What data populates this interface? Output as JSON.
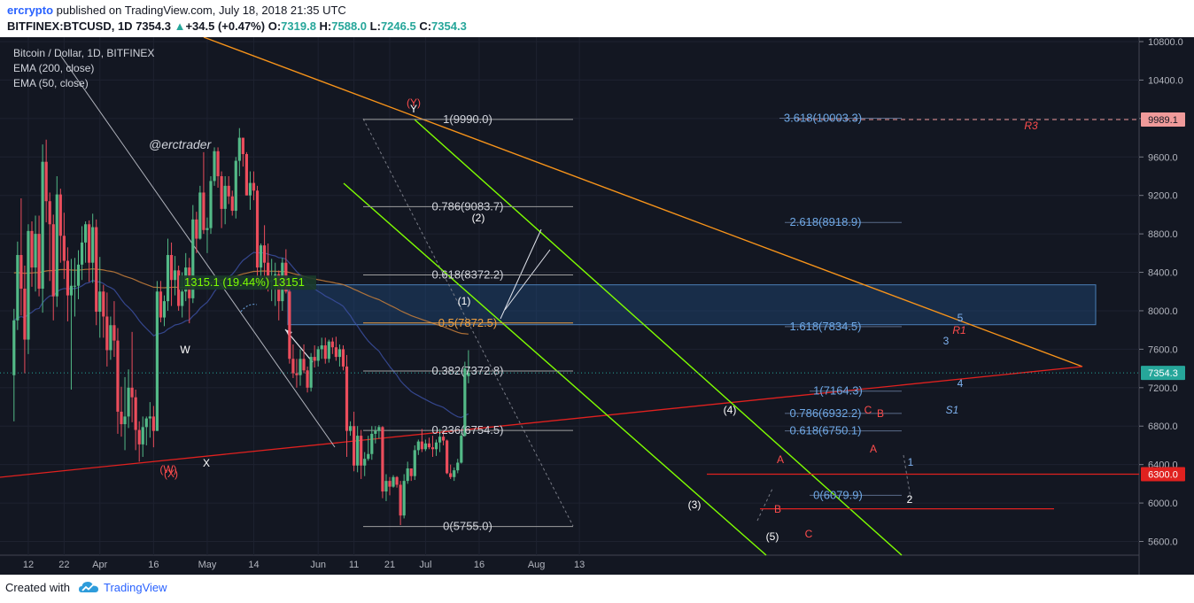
{
  "header": {
    "author": "ercrypto",
    "published_text": "published on TradingView.com, July 18, 2018 21:35 UTC",
    "symbol": "BITFINEX:BTCUSD, 1D",
    "last": "7354.3",
    "change": "+34.5 (+0.47%)",
    "o_label": "O:",
    "o_value": "7319.8",
    "h_label": "H:",
    "h_value": "7588.0",
    "l_label": "L:",
    "l_value": "7246.5",
    "c_label": "C:",
    "c_value": "7354.3"
  },
  "legend": {
    "title": "Bitcoin / Dollar, 1D, BITFINEX",
    "ema200": "EMA (200, close)",
    "ema50": "EMA (50, close)"
  },
  "watermark": "@erctrader",
  "footer": {
    "created": "Created with",
    "brand": "TradingView"
  },
  "colors": {
    "background": "#131722",
    "up": "#26a69a",
    "up_candle": "#53b987",
    "down": "#eb4d5c",
    "ema200": "#c87f3a",
    "ema50": "#3b4fa0",
    "channel": "#7fff00",
    "trendline_orange": "#f7931a",
    "trendline_red": "#e0211f",
    "fib": "#9e9e9e",
    "zone": "#1f4a7a",
    "wave_labels_red": "#ff4d4d",
    "fib_ext": "#6ea8e6"
  },
  "chart_data": {
    "type": "candlestick",
    "title": "Bitcoin / Dollar, 1D, BITFINEX",
    "ylim": [
      5400,
      10900
    ],
    "x_tick_labels": [
      "12",
      "22",
      "Apr",
      "16",
      "May",
      "14",
      "Jun",
      "11",
      "21",
      "Jul",
      "16",
      "Aug",
      "13"
    ],
    "y_tick_labels": [
      "10800.0",
      "10400.0",
      "10000.0",
      "9600.0",
      "9200.0",
      "8800.0",
      "8400.0",
      "8000.0",
      "7600.0",
      "7200.0",
      "6800.0",
      "6400.0",
      "6000.0",
      "5600.0"
    ],
    "price_tags": [
      {
        "label": "9989.1",
        "value": 9989.1,
        "color": "#ef9a9a"
      },
      {
        "label": "7354.3",
        "value": 7354.3,
        "color": "#26a69a"
      },
      {
        "label": "6300.0",
        "value": 6300.0,
        "color": "#e0211f"
      }
    ],
    "fib_retracement": {
      "levels": [
        {
          "label": "1(9990.0)",
          "value": 9990.0
        },
        {
          "label": "0.786(9083.7)",
          "value": 9083.7
        },
        {
          "label": "0.618(8372.2)",
          "value": 8372.2
        },
        {
          "label": "0.5(7872.5)",
          "value": 7872.5
        },
        {
          "label": "0.382(7372.8)",
          "value": 7372.8
        },
        {
          "label": "0.236(6754.5)",
          "value": 6754.5
        },
        {
          "label": "0(5755.0)",
          "value": 5755.0
        }
      ]
    },
    "fib_extension": {
      "levels": [
        {
          "label": "3.618(10003.3)",
          "value": 10003.3
        },
        {
          "label": "2.618(8918.9)",
          "value": 8918.9
        },
        {
          "label": "1.618(7834.5)",
          "value": 7834.5
        },
        {
          "label": "1(7164.3)",
          "value": 7164.3
        },
        {
          "label": "0.786(6932.2)",
          "value": 6932.2
        },
        {
          "label": "0.618(6750.1)",
          "value": 6750.1
        },
        {
          "label": "0(6079.9)",
          "value": 6079.9
        }
      ]
    },
    "measure_label": "1315.1 (19.44%) 13151",
    "wave_labels": [
      {
        "text": "W",
        "color": "white"
      },
      {
        "text": "X",
        "color": "white"
      },
      {
        "text": "(W)",
        "color": "red"
      },
      {
        "text": "(X)",
        "color": "red"
      },
      {
        "text": "(Y)",
        "color": "red"
      },
      {
        "text": "Y",
        "color": "white"
      },
      {
        "text": "(1)",
        "color": "white"
      },
      {
        "text": "(2)",
        "color": "white"
      },
      {
        "text": "(3)",
        "color": "white"
      },
      {
        "text": "(4)",
        "color": "white"
      },
      {
        "text": "(5)",
        "color": "white"
      },
      {
        "text": "A",
        "color": "red"
      },
      {
        "text": "B",
        "color": "red"
      },
      {
        "text": "C",
        "color": "red"
      },
      {
        "text": "A",
        "color": "red"
      },
      {
        "text": "B",
        "color": "red"
      },
      {
        "text": "C",
        "color": "red"
      },
      {
        "text": "1",
        "color": "blue"
      },
      {
        "text": "2",
        "color": "white"
      },
      {
        "text": "3",
        "color": "blue"
      },
      {
        "text": "4",
        "color": "blue"
      },
      {
        "text": "5",
        "color": "blue"
      },
      {
        "text": "R1",
        "color": "red"
      },
      {
        "text": "R3",
        "color": "red"
      },
      {
        "text": "S1",
        "color": "blue"
      }
    ],
    "ohlc": [
      [
        7330,
        8020,
        6850,
        7900
      ],
      [
        7900,
        8720,
        7800,
        8580
      ],
      [
        8580,
        9170,
        7950,
        8230
      ],
      [
        8230,
        8470,
        7350,
        7700
      ],
      [
        7700,
        8900,
        7550,
        8830
      ],
      [
        8830,
        8930,
        8250,
        8450
      ],
      [
        8450,
        8990,
        8200,
        8800
      ],
      [
        8800,
        8990,
        8150,
        8230
      ],
      [
        8230,
        9730,
        7980,
        9550
      ],
      [
        9550,
        9780,
        8920,
        9140
      ],
      [
        9140,
        9230,
        8310,
        8900
      ],
      [
        8900,
        9000,
        7900,
        8150
      ],
      [
        8150,
        9400,
        8040,
        9210
      ],
      [
        9210,
        9270,
        8500,
        8780
      ],
      [
        8780,
        9020,
        8330,
        8520
      ],
      [
        8520,
        8660,
        7890,
        8160
      ],
      [
        8160,
        8540,
        7180,
        8260
      ],
      [
        8260,
        8550,
        7940,
        8260
      ],
      [
        8260,
        8630,
        8120,
        8480
      ],
      [
        8480,
        8880,
        8320,
        8710
      ],
      [
        8710,
        8930,
        8500,
        8900
      ],
      [
        8900,
        8940,
        8300,
        8500
      ],
      [
        8500,
        9010,
        8290,
        8870
      ],
      [
        8870,
        8950,
        7850,
        7990
      ],
      [
        7990,
        8560,
        7720,
        8200
      ],
      [
        8200,
        8270,
        7720,
        7940
      ],
      [
        7940,
        8190,
        7420,
        7590
      ],
      [
        7590,
        7940,
        7490,
        7850
      ],
      [
        7850,
        8100,
        7520,
        7690
      ],
      [
        7690,
        7820,
        6720,
        6950
      ],
      [
        6950,
        7210,
        6690,
        6820
      ],
      [
        6820,
        7310,
        6550,
        6900
      ],
      [
        6900,
        7390,
        6780,
        7200
      ],
      [
        7200,
        7780,
        6840,
        7100
      ],
      [
        7100,
        7180,
        6550,
        6760
      ],
      [
        6760,
        6850,
        6430,
        6610
      ],
      [
        6610,
        6900,
        6480,
        6790
      ],
      [
        6790,
        6900,
        6600,
        6880
      ],
      [
        6880,
        7050,
        6680,
        6900
      ],
      [
        6900,
        7010,
        6580,
        6750
      ],
      [
        6750,
        8310,
        6750,
        8200
      ],
      [
        8200,
        8310,
        7880,
        7930
      ],
      [
        7930,
        8160,
        7840,
        8100
      ],
      [
        8100,
        8750,
        8000,
        8580
      ],
      [
        8580,
        8710,
        8050,
        8320
      ],
      [
        8320,
        8570,
        8160,
        8420
      ],
      [
        8420,
        8470,
        8000,
        8050
      ],
      [
        8050,
        8400,
        7930,
        8200
      ],
      [
        8200,
        8600,
        8100,
        8450
      ],
      [
        8450,
        8550,
        7870,
        8130
      ],
      [
        8130,
        9100,
        8080,
        8950
      ],
      [
        8950,
        9030,
        8600,
        8750
      ],
      [
        8750,
        9300,
        8740,
        9230
      ],
      [
        9230,
        9650,
        8800,
        8840
      ],
      [
        8840,
        8970,
        8600,
        8860
      ],
      [
        8860,
        9400,
        8800,
        9350
      ],
      [
        9350,
        9700,
        9300,
        9660
      ],
      [
        9660,
        9700,
        9280,
        9400
      ],
      [
        9400,
        9450,
        8860,
        9060
      ],
      [
        9060,
        9400,
        8900,
        9300
      ],
      [
        9300,
        9400,
        9110,
        9190
      ],
      [
        9190,
        9250,
        8990,
        9040
      ],
      [
        9040,
        9600,
        8960,
        9560
      ],
      [
        9560,
        9900,
        9400,
        9800
      ],
      [
        9800,
        9800,
        9500,
        9630
      ],
      [
        9630,
        9650,
        9200,
        9200
      ],
      [
        9200,
        9450,
        9050,
        9330
      ],
      [
        9330,
        9450,
        9150,
        9250
      ],
      [
        9250,
        9300,
        8300,
        8450
      ],
      [
        8450,
        8700,
        8220,
        8680
      ],
      [
        8680,
        8890,
        8350,
        8500
      ],
      [
        8500,
        8700,
        8200,
        8300
      ],
      [
        8300,
        8540,
        8100,
        8320
      ],
      [
        8320,
        8500,
        8050,
        8380
      ],
      [
        8380,
        8420,
        7900,
        8100
      ],
      [
        8100,
        8550,
        8000,
        8500
      ],
      [
        8500,
        8640,
        8180,
        8200
      ],
      [
        8200,
        8280,
        7450,
        7500
      ],
      [
        7500,
        7650,
        7300,
        7350
      ],
      [
        7350,
        7500,
        7200,
        7330
      ],
      [
        7330,
        7600,
        7220,
        7500
      ],
      [
        7500,
        7650,
        7350,
        7380
      ],
      [
        7380,
        7420,
        7150,
        7200
      ],
      [
        7200,
        7560,
        7160,
        7520
      ],
      [
        7520,
        7640,
        7410,
        7480
      ],
      [
        7480,
        7630,
        7420,
        7600
      ],
      [
        7600,
        7720,
        7500,
        7640
      ],
      [
        7640,
        7720,
        7450,
        7500
      ],
      [
        7500,
        7700,
        7460,
        7680
      ],
      [
        7680,
        7720,
        7550,
        7620
      ],
      [
        7620,
        7730,
        7480,
        7520
      ],
      [
        7520,
        7650,
        7420,
        7600
      ],
      [
        7600,
        7640,
        7380,
        7420
      ],
      [
        7420,
        7540,
        6480,
        6750
      ],
      [
        6750,
        6850,
        6700,
        6800
      ],
      [
        6800,
        6950,
        6330,
        6390
      ],
      [
        6390,
        6800,
        6320,
        6700
      ],
      [
        6700,
        6760,
        6250,
        6390
      ],
      [
        6390,
        6530,
        6280,
        6460
      ],
      [
        6460,
        6700,
        6440,
        6510
      ],
      [
        6510,
        6800,
        6450,
        6720
      ],
      [
        6720,
        6800,
        6620,
        6750
      ],
      [
        6750,
        6810,
        6670,
        6790
      ],
      [
        6790,
        6800,
        6050,
        6120
      ],
      [
        6120,
        6300,
        6020,
        6230
      ],
      [
        6230,
        6270,
        6080,
        6170
      ],
      [
        6170,
        6290,
        6160,
        6270
      ],
      [
        6270,
        6280,
        6160,
        6190
      ],
      [
        6190,
        6230,
        5770,
        5870
      ],
      [
        5870,
        6300,
        5840,
        6230
      ],
      [
        6230,
        6430,
        6200,
        6360
      ],
      [
        6360,
        6360,
        6230,
        6280
      ],
      [
        6280,
        6600,
        6240,
        6550
      ],
      [
        6550,
        6660,
        6500,
        6640
      ],
      [
        6640,
        6770,
        6530,
        6560
      ],
      [
        6560,
        6660,
        6540,
        6620
      ],
      [
        6620,
        6680,
        6560,
        6580
      ],
      [
        6580,
        6700,
        6480,
        6560
      ],
      [
        6560,
        6660,
        6490,
        6630
      ],
      [
        6630,
        6770,
        6530,
        6690
      ],
      [
        6690,
        6760,
        6600,
        6650
      ],
      [
        6650,
        6660,
        6300,
        6310
      ],
      [
        6310,
        6400,
        6250,
        6270
      ],
      [
        6270,
        6370,
        6230,
        6340
      ],
      [
        6340,
        6460,
        6310,
        6420
      ],
      [
        6420,
        6730,
        6410,
        6700
      ],
      [
        6700,
        7470,
        6690,
        7400
      ],
      [
        7320,
        7590,
        7246,
        7354
      ]
    ]
  }
}
